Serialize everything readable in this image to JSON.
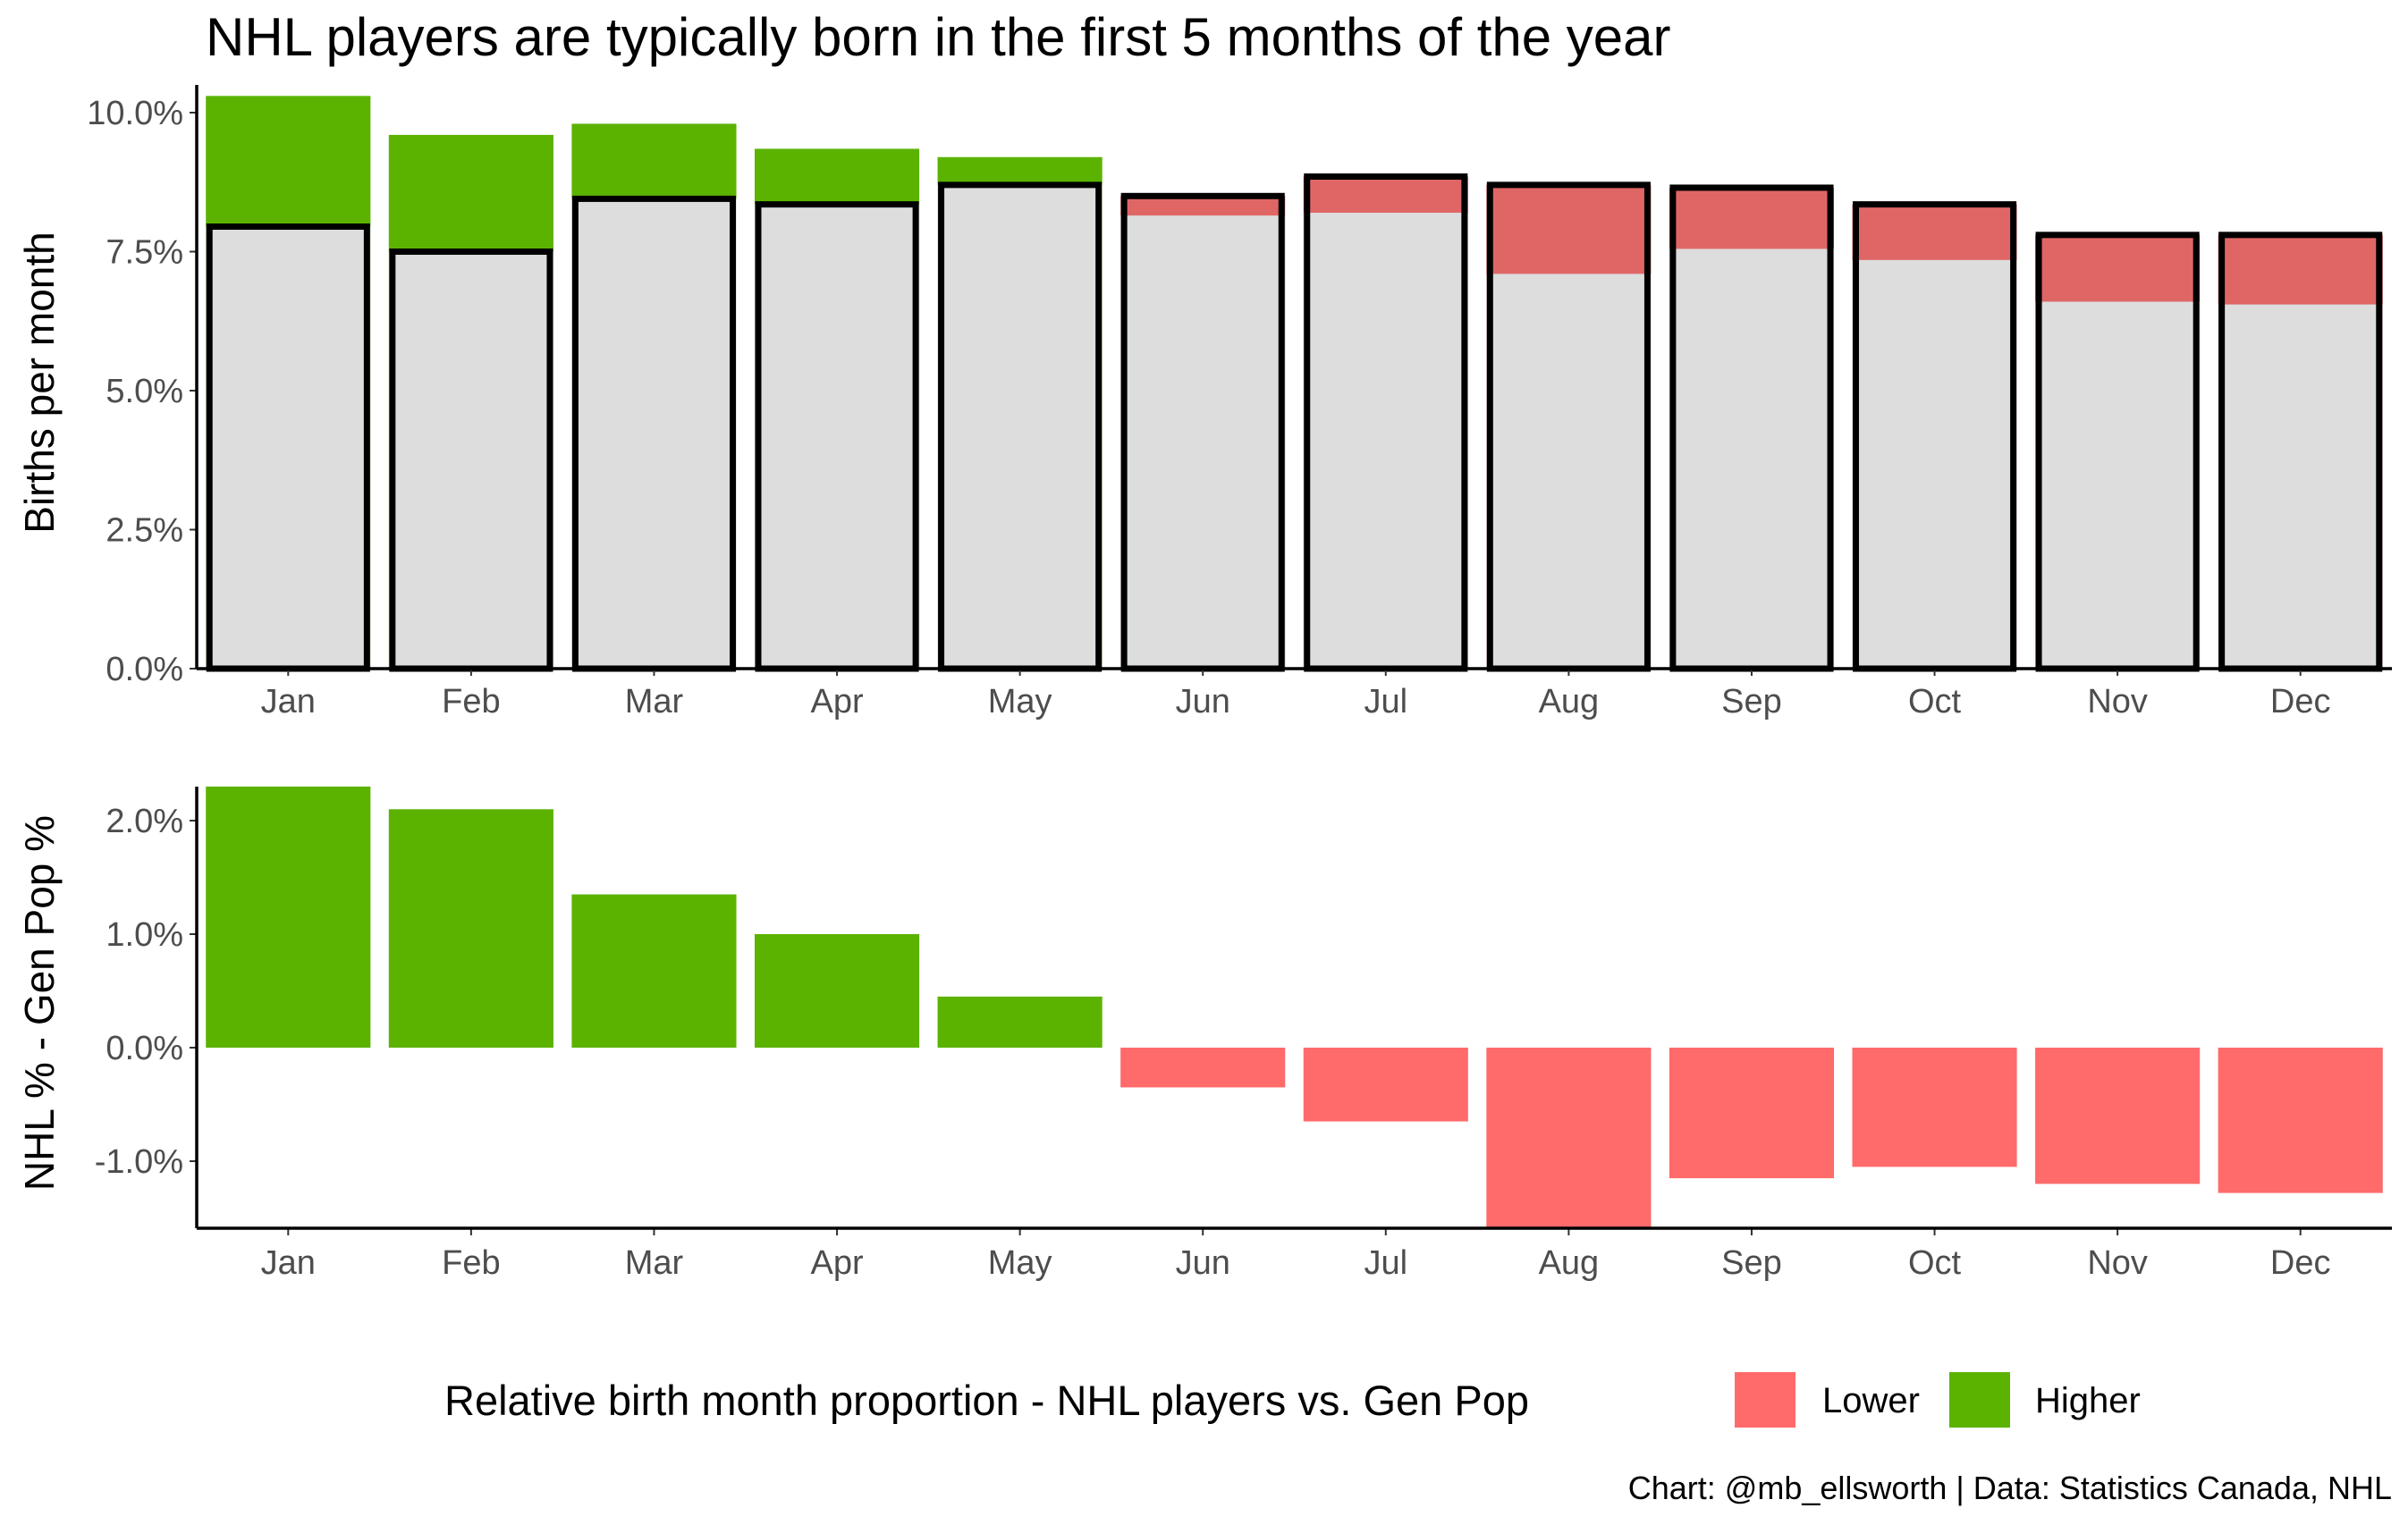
{
  "title": "NHL players are typically born in the first 5 months of the year",
  "caption": "Chart: @mb_ellsworth | Data: Statistics Canada, NHL",
  "colors": {
    "higher": "#5BB300",
    "lower": "#FF6A6A",
    "lower_top": "#E06666",
    "gen_pop": "#DDDDDD",
    "outline": "#000000"
  },
  "legend": {
    "title": "Relative birth month proportion - NHL players vs. Gen Pop",
    "items": [
      {
        "label": "Lower",
        "color": "#FF6A6A"
      },
      {
        "label": "Higher",
        "color": "#5BB300"
      }
    ]
  },
  "chart_data": [
    {
      "type": "bar",
      "ylabel": "Births per month",
      "ylim": [
        0,
        10.0
      ],
      "yticks": [
        "0.0%",
        "2.5%",
        "5.0%",
        "7.5%",
        "10.0%"
      ],
      "ytick_values": [
        0,
        2.5,
        5.0,
        7.5,
        10.0
      ],
      "categories": [
        "Jan",
        "Feb",
        "Mar",
        "Apr",
        "May",
        "Jun",
        "Jul",
        "Aug",
        "Sep",
        "Oct",
        "Nov",
        "Dec"
      ],
      "series": [
        {
          "name": "NHL",
          "values": [
            10.3,
            9.6,
            9.8,
            9.35,
            9.2,
            8.15,
            8.2,
            7.1,
            7.55,
            7.35,
            6.6,
            6.55
          ]
        },
        {
          "name": "Gen Pop",
          "values": [
            7.95,
            7.5,
            8.45,
            8.35,
            8.7,
            8.5,
            8.85,
            8.7,
            8.65,
            8.35,
            7.8,
            7.8
          ]
        }
      ]
    },
    {
      "type": "bar",
      "ylabel": "NHL % - Gen Pop %",
      "ylim": [
        -1.6,
        2.3
      ],
      "yticks": [
        "-1.0%",
        "0.0%",
        "1.0%",
        "2.0%"
      ],
      "ytick_values": [
        -1.0,
        0.0,
        1.0,
        2.0
      ],
      "categories": [
        "Jan",
        "Feb",
        "Mar",
        "Apr",
        "May",
        "Jun",
        "Jul",
        "Aug",
        "Sep",
        "Oct",
        "Nov",
        "Dec"
      ],
      "values": [
        2.3,
        2.1,
        1.35,
        1.0,
        0.45,
        -0.35,
        -0.65,
        -1.6,
        -1.15,
        -1.05,
        -1.2,
        -1.28
      ]
    }
  ]
}
